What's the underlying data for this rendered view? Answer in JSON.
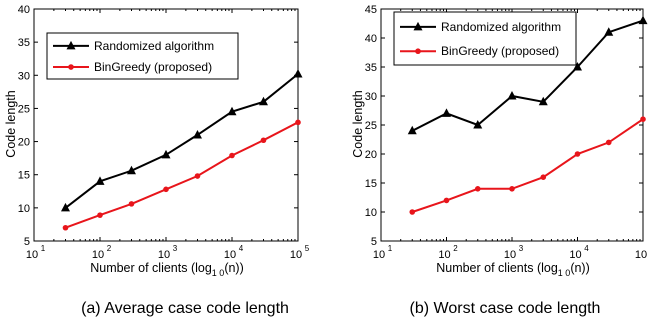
{
  "chart_data": [
    {
      "type": "line",
      "caption": "(a) Average case code length",
      "xlabel": "Number of clients (log",
      "xlabel_sub": "1 0",
      "xlabel_tail": "(n))",
      "ylabel": "Code length",
      "xscale": "log",
      "xlim": [
        10,
        100000
      ],
      "ylim": [
        5,
        40
      ],
      "xticks": [
        10,
        100,
        1000,
        10000,
        100000
      ],
      "xtick_base": "10",
      "xtick_exponents": [
        "1",
        "2",
        "3",
        "4",
        "5"
      ],
      "yticks": [
        5,
        10,
        15,
        20,
        25,
        30,
        35,
        40
      ],
      "legend": "top-left",
      "series": [
        {
          "name": "Randomized algorithm",
          "color": "#000000",
          "marker": "triangle",
          "x": [
            30,
            100,
            300,
            1000,
            3000,
            10000,
            30000,
            100000
          ],
          "y": [
            10,
            14,
            15.6,
            18,
            21,
            24.5,
            26,
            30.2
          ]
        },
        {
          "name": "BinGreedy (proposed)",
          "color": "#e8151b",
          "marker": "circle",
          "x": [
            30,
            100,
            300,
            1000,
            3000,
            10000,
            30000,
            100000
          ],
          "y": [
            7,
            8.9,
            10.6,
            12.8,
            14.8,
            17.9,
            20.2,
            22.9
          ]
        }
      ]
    },
    {
      "type": "line",
      "caption": "(b) Worst case code length",
      "xlabel": "Number of clients (log",
      "xlabel_sub": "1 0",
      "xlabel_tail": "(n))",
      "ylabel": "Code length",
      "xscale": "log",
      "xlim": [
        10,
        100000
      ],
      "ylim": [
        5,
        45
      ],
      "xticks": [
        10,
        100,
        1000,
        10000,
        100000
      ],
      "xtick_base": "10",
      "xtick_exponents": [
        "1",
        "2",
        "3",
        "4",
        "5"
      ],
      "yticks": [
        5,
        10,
        15,
        20,
        25,
        30,
        35,
        40,
        45
      ],
      "legend": "top-left",
      "series": [
        {
          "name": "Randomized algorithm",
          "color": "#000000",
          "marker": "triangle",
          "x": [
            30,
            100,
            300,
            1000,
            3000,
            10000,
            30000,
            100000
          ],
          "y": [
            24,
            27,
            25,
            30,
            29,
            35,
            41,
            43
          ]
        },
        {
          "name": "BinGreedy (proposed)",
          "color": "#e8151b",
          "marker": "circle",
          "x": [
            30,
            100,
            300,
            1000,
            3000,
            10000,
            30000,
            100000
          ],
          "y": [
            10,
            12,
            14,
            14,
            16,
            20,
            22,
            26
          ]
        }
      ]
    }
  ]
}
